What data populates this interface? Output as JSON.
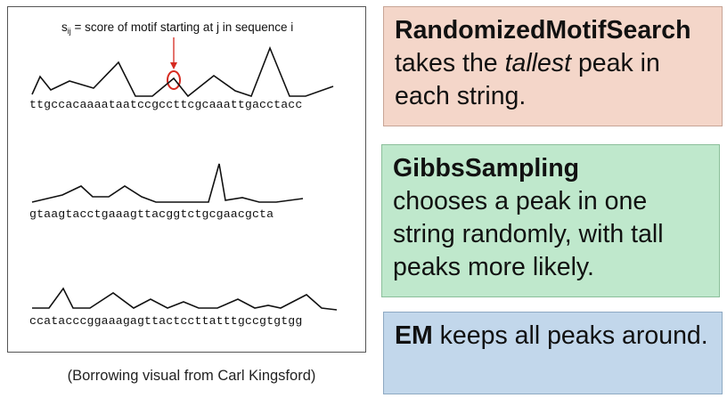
{
  "figure": {
    "score_label_prefix": "s",
    "score_label_sub": "ij",
    "score_label_rest": " = score of motif starting at j in sequence i",
    "sequences": [
      "ttgccacaaaataatccgccttcgcaaattgacctacc",
      "gtaagtacctgaaagttacggtctgcgaacgcta",
      "ccatacccggaaagagttactccttatttgccgtgtgg"
    ],
    "caption": "(Borrowing visual from Carl Kingsford)",
    "highlight_color": "#d62a20"
  },
  "boxes": {
    "randomized": {
      "bold": "RandomizedMotifSearch",
      "pre": " takes the ",
      "italic": "tallest",
      "post": " peak in each string."
    },
    "gibbs": {
      "bold": "GibbsSampling",
      "text": "chooses a peak in one string randomly, with tall peaks more likely."
    },
    "em": {
      "bold": "EM",
      "text": " keeps all peaks around."
    }
  }
}
